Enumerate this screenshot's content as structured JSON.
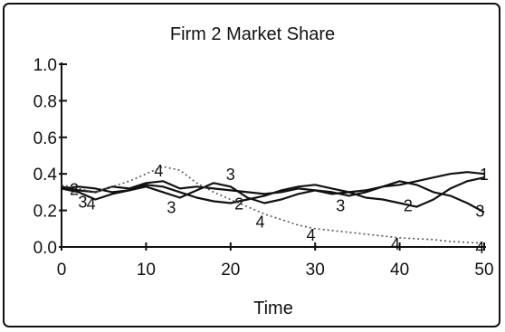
{
  "chart_data": {
    "type": "line",
    "title": "Firm 2 Market Share",
    "xlabel": "Time",
    "ylabel": "",
    "xlim": [
      0,
      50
    ],
    "ylim": [
      0,
      1.0
    ],
    "x_ticks": [
      "0",
      "10",
      "20",
      "30",
      "40",
      "50"
    ],
    "y_ticks": [
      "0.0",
      "0.2",
      "0.4",
      "0.6",
      "0.8",
      "1.0"
    ],
    "grid": false,
    "legend": "none",
    "series": [
      {
        "name": "1",
        "style": "solid",
        "x": [
          0,
          2,
          4,
          6,
          8,
          10,
          12,
          14,
          16,
          18,
          20,
          22,
          24,
          26,
          28,
          30,
          32,
          34,
          36,
          38,
          40,
          42,
          44,
          46,
          48,
          50
        ],
        "values": [
          0.33,
          0.31,
          0.3,
          0.33,
          0.32,
          0.35,
          0.36,
          0.32,
          0.33,
          0.32,
          0.31,
          0.3,
          0.29,
          0.3,
          0.32,
          0.31,
          0.29,
          0.3,
          0.31,
          0.33,
          0.34,
          0.36,
          0.38,
          0.4,
          0.41,
          0.4
        ],
        "labels": [
          {
            "x": 50,
            "y": 0.4,
            "text": "1"
          }
        ]
      },
      {
        "name": "2",
        "style": "solid",
        "x": [
          0,
          2,
          4,
          6,
          8,
          10,
          12,
          14,
          16,
          18,
          20,
          22,
          24,
          26,
          28,
          30,
          32,
          34,
          36,
          38,
          40,
          42,
          44,
          46,
          48,
          50
        ],
        "values": [
          0.32,
          0.33,
          0.32,
          0.3,
          0.31,
          0.34,
          0.33,
          0.3,
          0.27,
          0.25,
          0.24,
          0.26,
          0.28,
          0.31,
          0.33,
          0.34,
          0.32,
          0.3,
          0.27,
          0.26,
          0.24,
          0.22,
          0.26,
          0.32,
          0.36,
          0.38
        ],
        "labels": [
          {
            "x": 1.5,
            "y": 0.32,
            "text": "2"
          },
          {
            "x": 21,
            "y": 0.24,
            "text": "2"
          },
          {
            "x": 41,
            "y": 0.23,
            "text": "2"
          }
        ]
      },
      {
        "name": "3",
        "style": "solid",
        "x": [
          0,
          2,
          4,
          6,
          8,
          10,
          12,
          14,
          16,
          18,
          20,
          22,
          24,
          26,
          28,
          30,
          32,
          34,
          36,
          38,
          40,
          42,
          44,
          46,
          48,
          50
        ],
        "values": [
          0.32,
          0.3,
          0.26,
          0.29,
          0.31,
          0.33,
          0.3,
          0.27,
          0.31,
          0.35,
          0.33,
          0.27,
          0.24,
          0.26,
          0.29,
          0.31,
          0.3,
          0.28,
          0.3,
          0.33,
          0.36,
          0.34,
          0.3,
          0.28,
          0.24,
          0.19
        ],
        "labels": [
          {
            "x": 2.5,
            "y": 0.25,
            "text": "3"
          },
          {
            "x": 13,
            "y": 0.22,
            "text": "3"
          },
          {
            "x": 20,
            "y": 0.4,
            "text": "3"
          },
          {
            "x": 33,
            "y": 0.23,
            "text": "3"
          },
          {
            "x": 49.5,
            "y": 0.2,
            "text": "3"
          }
        ]
      },
      {
        "name": "4",
        "style": "dotted",
        "x": [
          0,
          2,
          4,
          6,
          8,
          10,
          12,
          14,
          16,
          18,
          20,
          22,
          24,
          26,
          28,
          30,
          32,
          34,
          36,
          38,
          40,
          42,
          44,
          46,
          48,
          50
        ],
        "values": [
          0.34,
          0.32,
          0.3,
          0.33,
          0.36,
          0.4,
          0.44,
          0.42,
          0.35,
          0.3,
          0.26,
          0.22,
          0.18,
          0.15,
          0.12,
          0.1,
          0.09,
          0.08,
          0.07,
          0.06,
          0.05,
          0.045,
          0.04,
          0.03,
          0.025,
          0.02
        ],
        "labels": [
          {
            "x": 3.5,
            "y": 0.24,
            "text": "4"
          },
          {
            "x": 11.5,
            "y": 0.42,
            "text": "4"
          },
          {
            "x": 23.5,
            "y": 0.14,
            "text": "4"
          },
          {
            "x": 29.5,
            "y": 0.07,
            "text": "4"
          },
          {
            "x": 39.5,
            "y": 0.02,
            "text": "4"
          },
          {
            "x": 49.5,
            "y": 0.0,
            "text": "4"
          }
        ]
      }
    ]
  }
}
